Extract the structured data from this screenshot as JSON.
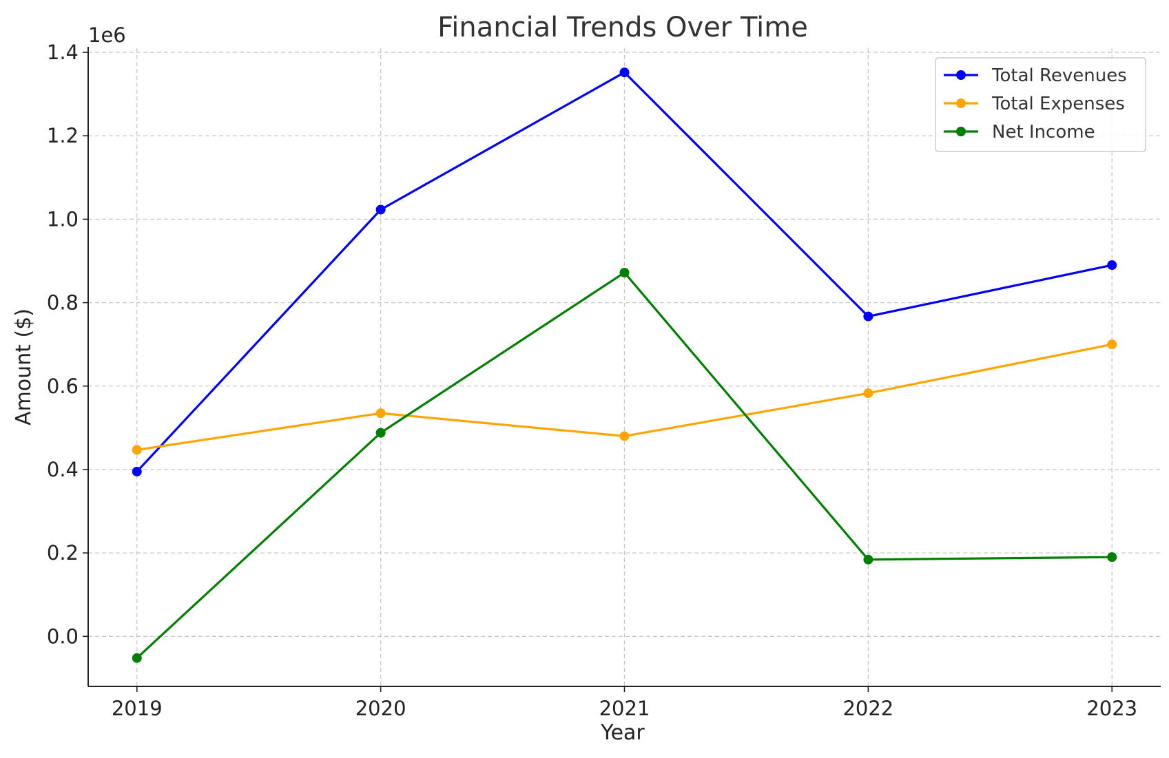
{
  "chart_data": {
    "type": "line",
    "title": "Financial Trends Over Time",
    "xlabel": "Year",
    "ylabel": "Amount ($)",
    "y_offset_label": "1e6",
    "x": [
      "2019",
      "2020",
      "2021",
      "2022",
      "2023"
    ],
    "y_ticks": [
      "0.0",
      "0.2",
      "0.4",
      "0.6",
      "0.8",
      "1.0",
      "1.2",
      "1.4"
    ],
    "ylim": [
      -120000,
      1410000
    ],
    "grid": true,
    "legend_position": "top-right",
    "series": [
      {
        "name": "Total Revenues",
        "color": "#0000ff",
        "values": [
          395000,
          1023000,
          1352000,
          767000,
          890000
        ]
      },
      {
        "name": "Total Expenses",
        "color": "#ffa500",
        "values": [
          447000,
          535000,
          480000,
          583000,
          700000
        ]
      },
      {
        "name": "Net Income",
        "color": "#008000",
        "values": [
          -52000,
          488000,
          872000,
          184000,
          190000
        ]
      }
    ]
  }
}
